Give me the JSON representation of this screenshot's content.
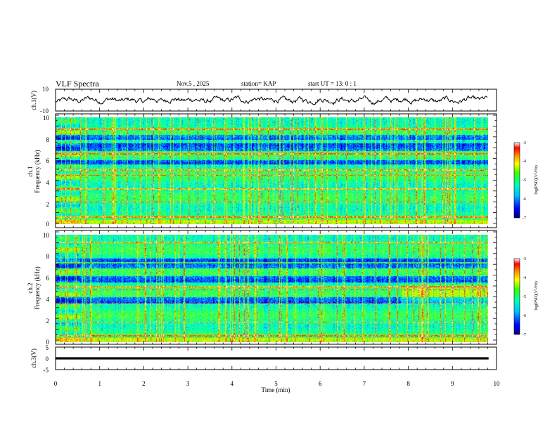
{
  "header": {
    "title": "VLF Spectra",
    "date": "Nov.5 , 2025",
    "station": "station= KAP",
    "start": "start UT = 13: 0 : 1"
  },
  "colors": {
    "waveform": "#000000",
    "ch3_bar": "#000000",
    "colormap": [
      "#000080",
      "#0000ff",
      "#0080ff",
      "#00ffff",
      "#00ff80",
      "#80ff00",
      "#ffff00",
      "#ff8000",
      "#ff0000",
      "#ffffff"
    ]
  },
  "chart_data": [
    {
      "type": "line",
      "id": "ch1_waveform",
      "ylabel": "ch.1(V)",
      "ylim": [
        -10,
        10
      ],
      "yticks": [
        "10",
        "-10"
      ],
      "xlim": [
        0,
        10
      ],
      "series": [
        {
          "name": "ch.1",
          "amplitude_range": [
            -4,
            4
          ]
        }
      ]
    },
    {
      "type": "heatmap",
      "id": "ch1_spectrogram",
      "ylabel_line1": "ch.1",
      "ylabel_line2": "Frequency (kHz)",
      "ylim": [
        0,
        10
      ],
      "yticks": [
        "0",
        "2",
        "4",
        "6",
        "8",
        "10"
      ],
      "xlim": [
        0,
        9.82
      ],
      "colorbar": {
        "range": [
          -7,
          -3
        ],
        "ticks": [
          "-3",
          "-4",
          "-5",
          "-6",
          "-7"
        ],
        "label": "log(PSD)(V²/Hz)"
      },
      "features": {
        "initial_segment_end_min": 0.55,
        "strong_bands_khz": [
          0.7,
          2.1,
          3.3,
          4.6,
          5.1,
          6.6,
          8.9
        ],
        "low_power_bands_khz": [
          [
            5.6,
            6.0
          ],
          [
            6.9,
            7.6
          ],
          [
            7.9,
            8.4
          ]
        ]
      }
    },
    {
      "type": "heatmap",
      "id": "ch2_spectrogram",
      "ylabel_line1": "ch.2",
      "ylabel_line2": "Frequency (kHz)",
      "ylim": [
        0,
        10
      ],
      "yticks": [
        "0",
        "2",
        "4",
        "6",
        "8",
        "10"
      ],
      "xlim": [
        0,
        9.82
      ],
      "colorbar": {
        "range": [
          -7,
          -3
        ],
        "ticks": [
          "-3",
          "-4",
          "-5",
          "-6",
          "-7"
        ],
        "label": "log(PSD)(V²/Hz)"
      },
      "features": {
        "initial_segment_end_min": 0.55,
        "late_segment_start_min": 7.85,
        "strong_bands_khz": [
          0.6,
          1.9,
          3.6,
          4.9,
          5.2,
          7.4,
          9.3
        ],
        "low_power_bands_khz": [
          [
            3.6,
            4.2
          ],
          [
            5.6,
            6.2
          ],
          [
            6.9,
            7.8
          ]
        ]
      }
    },
    {
      "type": "line",
      "id": "ch3_signal",
      "ylabel": "ch.3(V)",
      "ylim": [
        -5,
        5
      ],
      "yticks": [
        "5",
        "0",
        "-5"
      ],
      "xlim": [
        0,
        10
      ],
      "series": [
        {
          "name": "ch.3",
          "band_range": [
            -0.5,
            0.5
          ],
          "x_end": 9.82
        }
      ]
    }
  ],
  "xaxis": {
    "label": "Time (min)",
    "ticks": [
      "0",
      "1",
      "2",
      "3",
      "4",
      "5",
      "6",
      "7",
      "8",
      "9",
      "10"
    ]
  }
}
